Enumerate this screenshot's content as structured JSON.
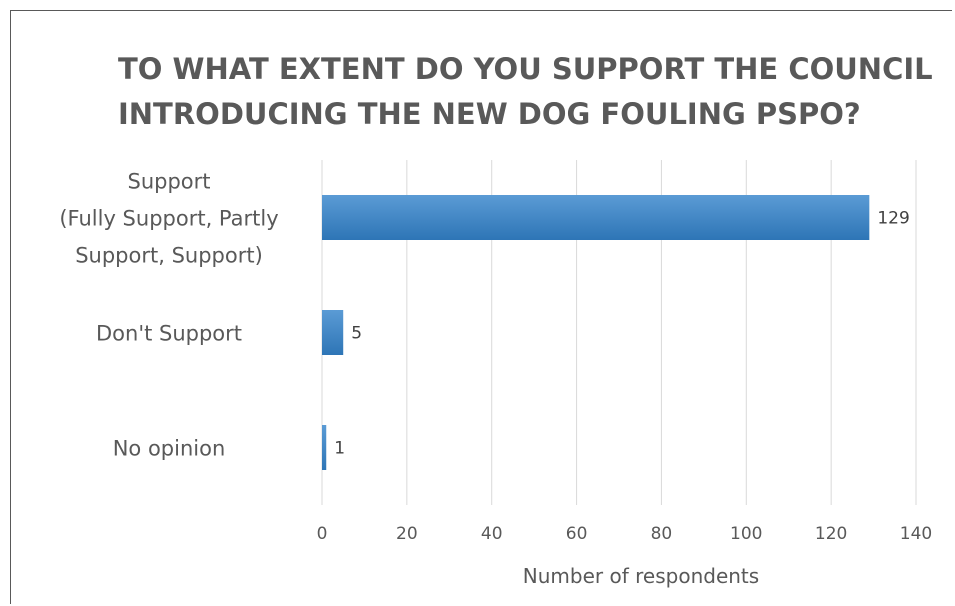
{
  "chart_data": {
    "type": "bar",
    "orientation": "horizontal",
    "title_lines": [
      "TO WHAT EXTENT DO YOU SUPPORT THE COUNCIL",
      "INTRODUCING THE NEW DOG FOULING PSPO?"
    ],
    "categories": [
      {
        "lines": [
          "Support",
          "(Fully Support, Partly",
          "Support, Support)"
        ]
      },
      {
        "lines": [
          "Don't Support"
        ]
      },
      {
        "lines": [
          "No opinion"
        ]
      }
    ],
    "values": [
      129,
      5,
      1
    ],
    "data_labels": [
      "129",
      "5",
      "1"
    ],
    "xlabel": "Number of respondents",
    "ylabel": "",
    "xlim": [
      0,
      140
    ],
    "x_ticks": [
      0,
      20,
      40,
      60,
      80,
      100,
      120,
      140
    ],
    "x_tick_labels": [
      "0",
      "20",
      "40",
      "60",
      "80",
      "100",
      "120",
      "140"
    ],
    "grid": "vertical",
    "legend": "none",
    "colors": {
      "bar_top": "#5b9bd5",
      "bar_bottom": "#2e75b6",
      "text": "#595959",
      "grid": "#d9d9d9"
    }
  }
}
